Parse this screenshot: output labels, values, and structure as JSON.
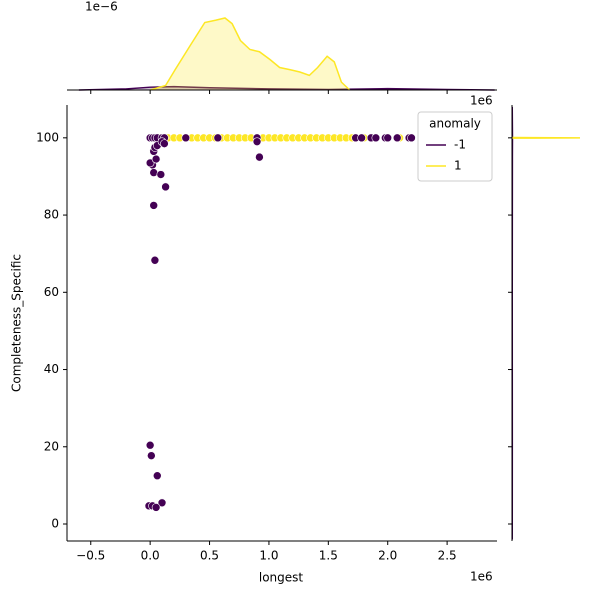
{
  "chart_data": {
    "type": "scatter",
    "x_label": "longest",
    "y_label": "Completeness_Specific",
    "x_offset": "1e6",
    "xlim": [
      -700000,
      2920000
    ],
    "ylim": [
      -4.4,
      108.5
    ],
    "xticks": [
      {
        "value": -500000,
        "label": "−0.5"
      },
      {
        "value": 0,
        "label": "0.0"
      },
      {
        "value": 500000,
        "label": "0.5"
      },
      {
        "value": 1000000,
        "label": "1.0"
      },
      {
        "value": 1500000,
        "label": "1.5"
      },
      {
        "value": 2000000,
        "label": "2.0"
      },
      {
        "value": 2500000,
        "label": "2.5"
      }
    ],
    "yticks": [
      0,
      20,
      40,
      60,
      80,
      100
    ],
    "legend_title": "anomaly",
    "legend": "upper right",
    "series": [
      {
        "name": "1",
        "color": "#fde725",
        "x": [
          50000,
          80000,
          120000,
          150000,
          200000,
          250000,
          300000,
          350000,
          400000,
          450000,
          500000,
          550000,
          600000,
          650000,
          700000,
          750000,
          800000,
          850000,
          950000,
          1000000,
          1050000,
          1100000,
          1150000,
          1200000,
          1250000,
          1300000,
          1350000,
          1400000,
          1450000,
          1500000,
          1550000,
          1600000,
          1650000,
          1700000,
          1800000,
          2100000
        ],
        "values": [
          100,
          100,
          100,
          100,
          100,
          100,
          100,
          100,
          100,
          100,
          100,
          100,
          100,
          100,
          100,
          100,
          100,
          100,
          100,
          100,
          100,
          100,
          100,
          100,
          100,
          100,
          100,
          100,
          100,
          100,
          100,
          100,
          100,
          100,
          100,
          100
        ]
      },
      {
        "name": "-1",
        "color": "#440154",
        "x": [
          0,
          20000,
          40000,
          60000,
          100000,
          120000,
          300000,
          570000,
          900000,
          900000,
          920000,
          20000,
          0,
          30000,
          50000,
          40000,
          60000,
          100000,
          120000,
          30000,
          90000,
          130000,
          30000,
          40000,
          0,
          10000,
          60000,
          100000,
          -10000,
          20000,
          50000,
          1730000,
          1780000,
          1860000,
          1900000,
          1980000,
          2000000,
          2080000,
          2180000,
          2200000
        ],
        "values": [
          100,
          100,
          100,
          100,
          100,
          100,
          100,
          100,
          100,
          99,
          95,
          93,
          93.5,
          96.5,
          94.5,
          97.5,
          98,
          99,
          98.5,
          91,
          90.5,
          87.3,
          82.5,
          68.3,
          20.4,
          17.7,
          12.5,
          5.5,
          4.7,
          4.7,
          4.3,
          100,
          100,
          100,
          100,
          100,
          100,
          100,
          100,
          100
        ]
      }
    ],
    "top_marginal": {
      "type": "kde",
      "offset": "1e−6",
      "ylim": [
        0,
        0.8
      ],
      "fill": true,
      "series": [
        {
          "color": "#440154",
          "x": [
            -600000,
            -200000,
            0,
            200000,
            500000,
            1000000,
            1500000,
            2000000,
            2500000,
            2900000
          ],
          "values": [
            0,
            0.01,
            0.025,
            0.03,
            0.02,
            0.01,
            0.005,
            0.012,
            0.005,
            0
          ]
        },
        {
          "color": "#fde725",
          "x": [
            0,
            130000,
            210000,
            340000,
            460000,
            550000,
            630000,
            690000,
            760000,
            840000,
            920000,
            1010000,
            1090000,
            1180000,
            1260000,
            1340000,
            1410000,
            1490000,
            1550000,
            1610000,
            1680000
          ],
          "values": [
            0,
            0.04,
            0.18,
            0.4,
            0.6,
            0.62,
            0.64,
            0.59,
            0.44,
            0.36,
            0.34,
            0.27,
            0.2,
            0.18,
            0.16,
            0.13,
            0.2,
            0.3,
            0.25,
            0.07,
            0
          ]
        }
      ]
    },
    "right_marginal": {
      "type": "kde",
      "offset": "1e6",
      "xlim": [
        0,
        1
      ],
      "series": [
        {
          "color": "#440154",
          "y": [
            -4,
            20,
            60,
            95,
            100,
            108
          ],
          "values": [
            0.003,
            0.004,
            0.003,
            0.005,
            0.006,
            0.003
          ]
        },
        {
          "color": "#fde725",
          "y": [
            99.9,
            100,
            100.1
          ],
          "values": [
            0,
            0.85,
            0
          ]
        }
      ]
    }
  }
}
